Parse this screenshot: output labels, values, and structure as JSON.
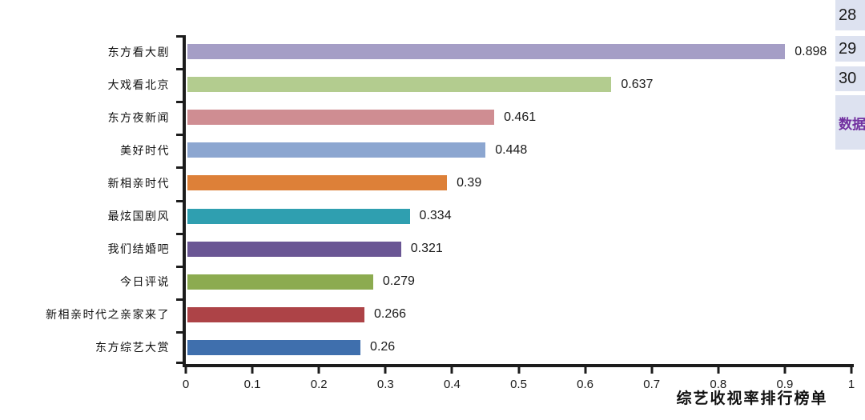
{
  "chart_data": {
    "type": "bar",
    "orientation": "horizontal",
    "title": "",
    "xlabel": "综艺收视率排行榜单",
    "ylabel": "",
    "xlim": [
      0,
      1
    ],
    "x_ticks": [
      "0",
      "0.1",
      "0.2",
      "0.3",
      "0.4",
      "0.5",
      "0.6",
      "0.7",
      "0.8",
      "0.9",
      "1"
    ],
    "grid": false,
    "legend": "none",
    "categories": [
      "东方看大剧",
      "大戏看北京",
      "东方夜新闻",
      "美好时代",
      "新相亲时代",
      "最炫国剧风",
      "我们结婚吧",
      "今日评说",
      "新相亲时代之亲家来了",
      "东方综艺大赏"
    ],
    "values": [
      0.898,
      0.637,
      0.461,
      0.448,
      0.39,
      0.334,
      0.321,
      0.279,
      0.266,
      0.26
    ],
    "value_labels": [
      "0.898",
      "0.637",
      "0.461",
      "0.448",
      "0.39",
      "0.334",
      "0.321",
      "0.279",
      "0.266",
      "0.26"
    ],
    "bar_colors": [
      "#a59ec6",
      "#b3cc8f",
      "#cf8d92",
      "#8ca6d0",
      "#dd8038",
      "#2f9fb0",
      "#6a5694",
      "#8cab50",
      "#ad4347",
      "#3f6fad"
    ]
  },
  "sidebar": {
    "bg_color": "#dde2f0",
    "link_color": "#7231a0",
    "cells": [
      {
        "label": "28",
        "kind": "row-number"
      },
      {
        "label": "29",
        "kind": "row-number"
      },
      {
        "label": "30",
        "kind": "row-number"
      },
      {
        "label": "数据",
        "kind": "link"
      }
    ]
  },
  "colors": {
    "axis": "#1c1c1c",
    "text": "#111111",
    "background": "#ffffff"
  }
}
